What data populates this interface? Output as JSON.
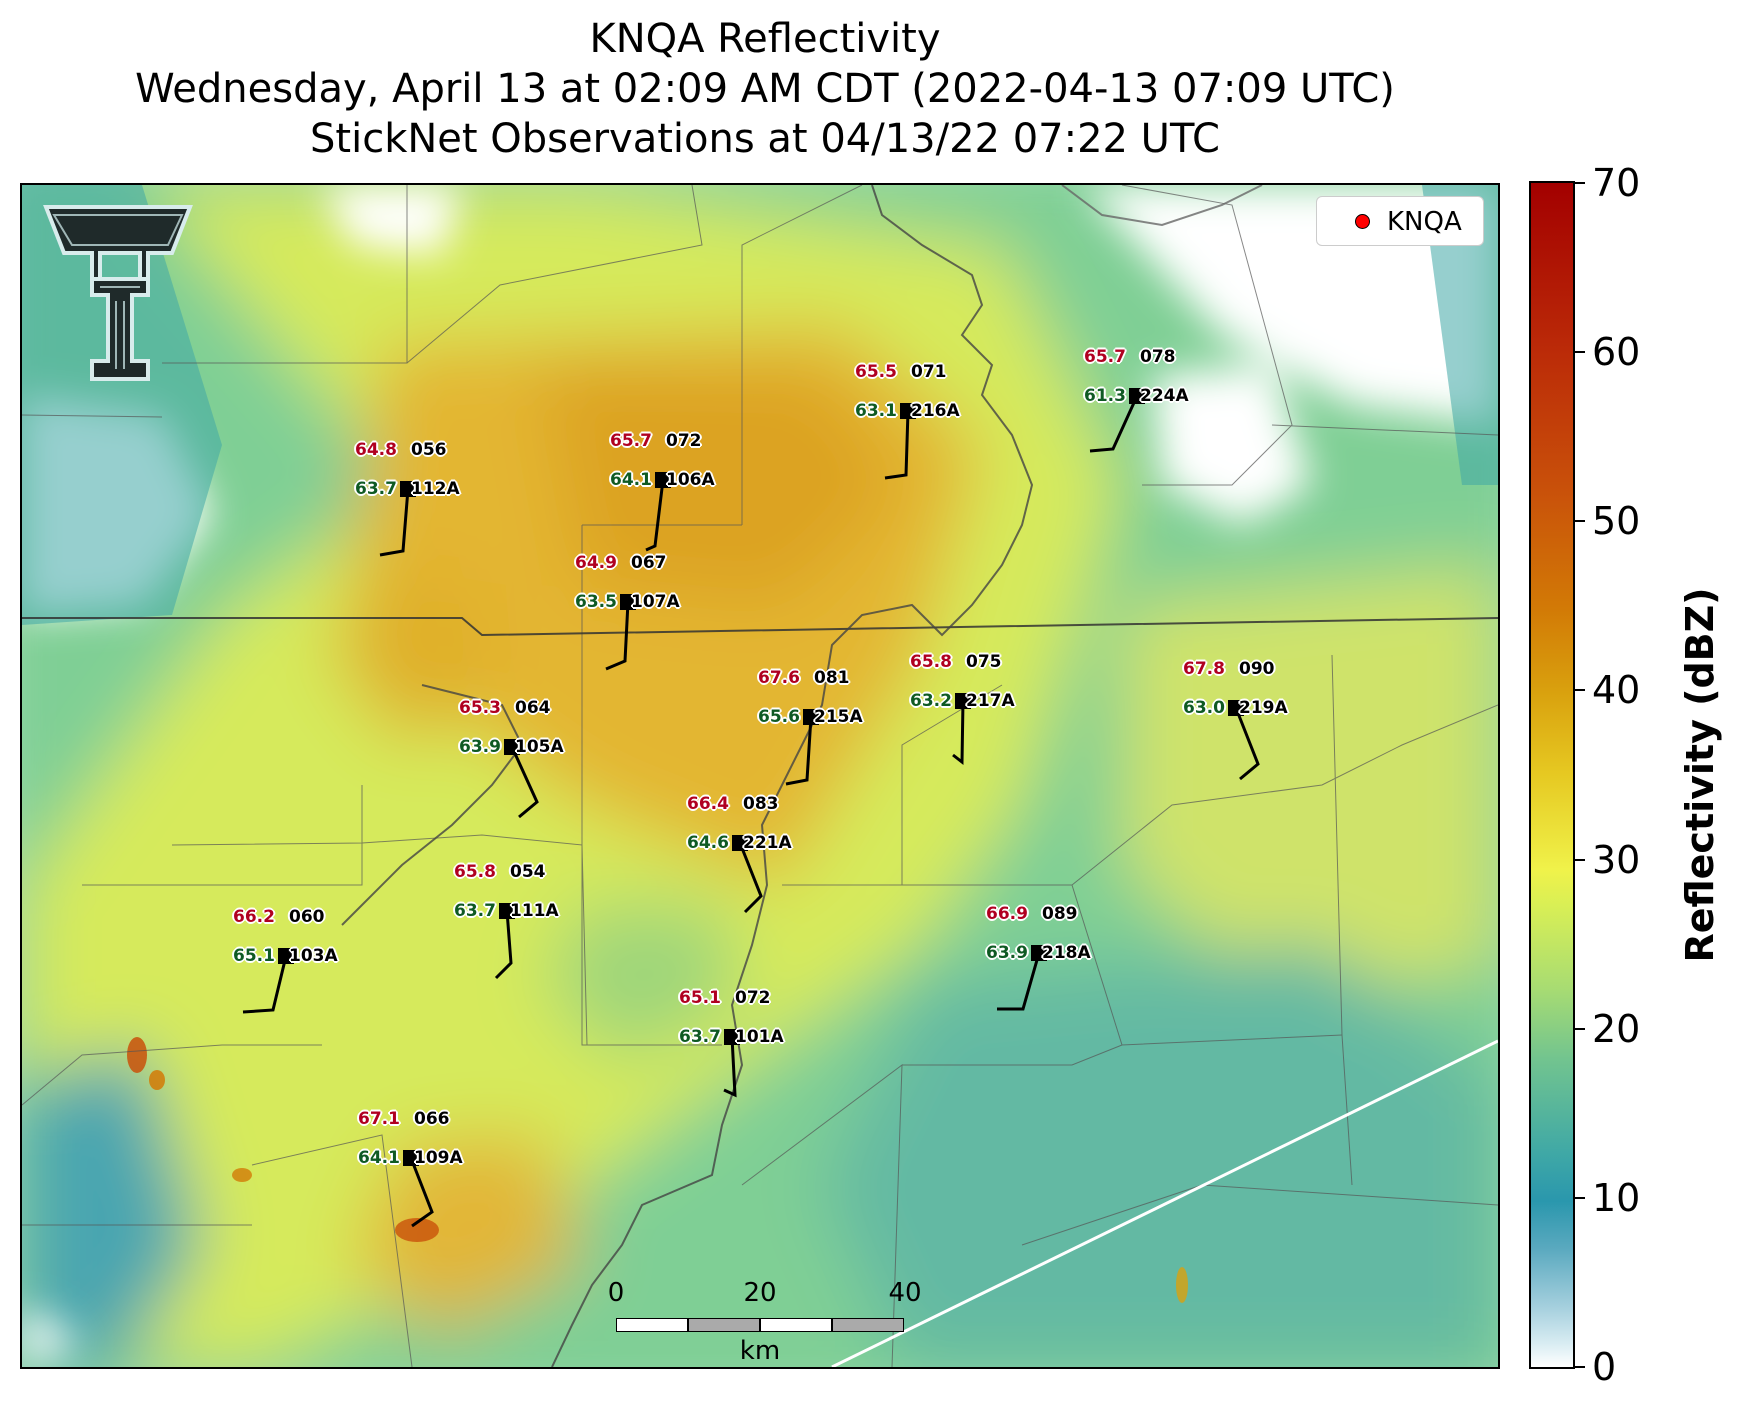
{
  "title": {
    "line1": "KNQA Reflectivity",
    "line2": "Wednesday, April 13 at 02:09 AM CDT (2022-04-13 07:09 UTC)",
    "line3": "StickNet Observations at 04/13/22 07:22 UTC"
  },
  "legend": {
    "label": "KNQA",
    "marker_color": "#ff0000"
  },
  "colorbar": {
    "label": "Reflectivity (dBZ)",
    "ticks": [
      "70",
      "60",
      "50",
      "40",
      "30",
      "20",
      "10",
      "0"
    ],
    "colors": [
      "#ffffff",
      "#2a97ad",
      "#a8dc72",
      "#f0f24a",
      "#d9a10e",
      "#c9510a",
      "#a30000"
    ]
  },
  "scalebar": {
    "ticks": [
      "0",
      "20",
      "40"
    ],
    "unit": "km"
  },
  "logo": {
    "name": "Texas Tech double-T logo"
  },
  "stations": [
    {
      "id": "112A",
      "temp": "64.8",
      "dew": "63.7",
      "pressure": "056"
    },
    {
      "id": "106A",
      "temp": "65.7",
      "dew": "64.1",
      "pressure": "072"
    },
    {
      "id": "216A",
      "temp": "65.5",
      "dew": "63.1",
      "pressure": "071"
    },
    {
      "id": "224A",
      "temp": "65.7",
      "dew": "61.3",
      "pressure": "078"
    },
    {
      "id": "107A",
      "temp": "64.9",
      "dew": "63.5",
      "pressure": "067"
    },
    {
      "id": "105A",
      "temp": "65.3",
      "dew": "63.9",
      "pressure": "064"
    },
    {
      "id": "215A",
      "temp": "67.6",
      "dew": "65.6",
      "pressure": "081"
    },
    {
      "id": "217A",
      "temp": "65.8",
      "dew": "63.2",
      "pressure": "075"
    },
    {
      "id": "219A",
      "temp": "67.8",
      "dew": "63.0",
      "pressure": "090"
    },
    {
      "id": "221A",
      "temp": "66.4",
      "dew": "64.6",
      "pressure": "083"
    },
    {
      "id": "111A",
      "temp": "65.8",
      "dew": "63.7",
      "pressure": "054"
    },
    {
      "id": "103A",
      "temp": "66.2",
      "dew": "65.1",
      "pressure": "060"
    },
    {
      "id": "218A",
      "temp": "66.9",
      "dew": "63.9",
      "pressure": "089"
    },
    {
      "id": "101A",
      "temp": "65.1",
      "dew": "63.7",
      "pressure": "072"
    },
    {
      "id": "109A",
      "temp": "67.1",
      "dew": "64.1",
      "pressure": "066"
    }
  ]
}
